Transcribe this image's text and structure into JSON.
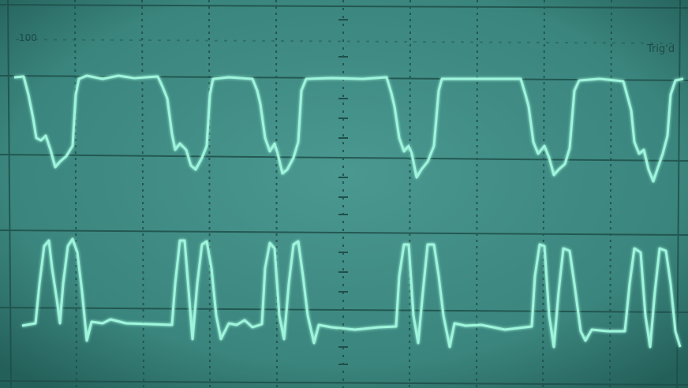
{
  "screen": {
    "top_left_label": "100",
    "top_right_label": "Trig'd"
  }
}
